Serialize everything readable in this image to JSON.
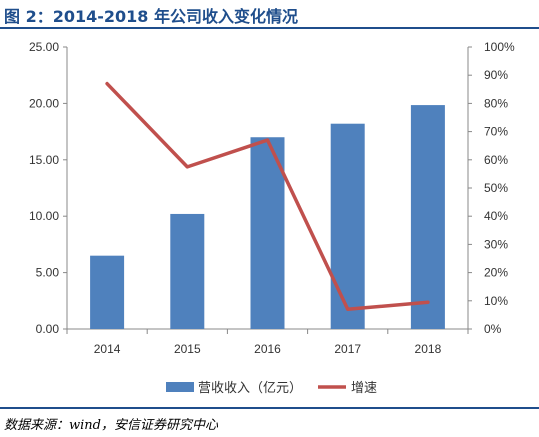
{
  "header": {
    "title": "图 2：2014-2018 年公司收入变化情况"
  },
  "footer": {
    "source": "数据来源：wind，安信证券研究中心"
  },
  "colors": {
    "bar": "#4f81bd",
    "line": "#c0504d",
    "brand": "#1f4e8c"
  },
  "chart_data": {
    "type": "bar",
    "title": "",
    "categories": [
      "2014",
      "2015",
      "2016",
      "2017",
      "2018"
    ],
    "series": [
      {
        "name": "营收收入（亿元）",
        "type": "bar",
        "axis": "left",
        "values": [
          6.5,
          10.2,
          17.0,
          18.2,
          19.85
        ]
      },
      {
        "name": "增速",
        "type": "line",
        "axis": "right",
        "values": [
          87,
          57.5,
          67,
          7,
          9.5
        ]
      }
    ],
    "y_left": {
      "ylim": [
        0,
        25
      ],
      "ticks": [
        "0.00",
        "5.00",
        "10.00",
        "15.00",
        "20.00",
        "25.00"
      ]
    },
    "y_right": {
      "ylim": [
        0,
        100
      ],
      "ticks": [
        "0%",
        "10%",
        "20%",
        "30%",
        "40%",
        "50%",
        "60%",
        "70%",
        "80%",
        "90%",
        "100%"
      ]
    },
    "grid": false,
    "legend_position": "bottom"
  }
}
